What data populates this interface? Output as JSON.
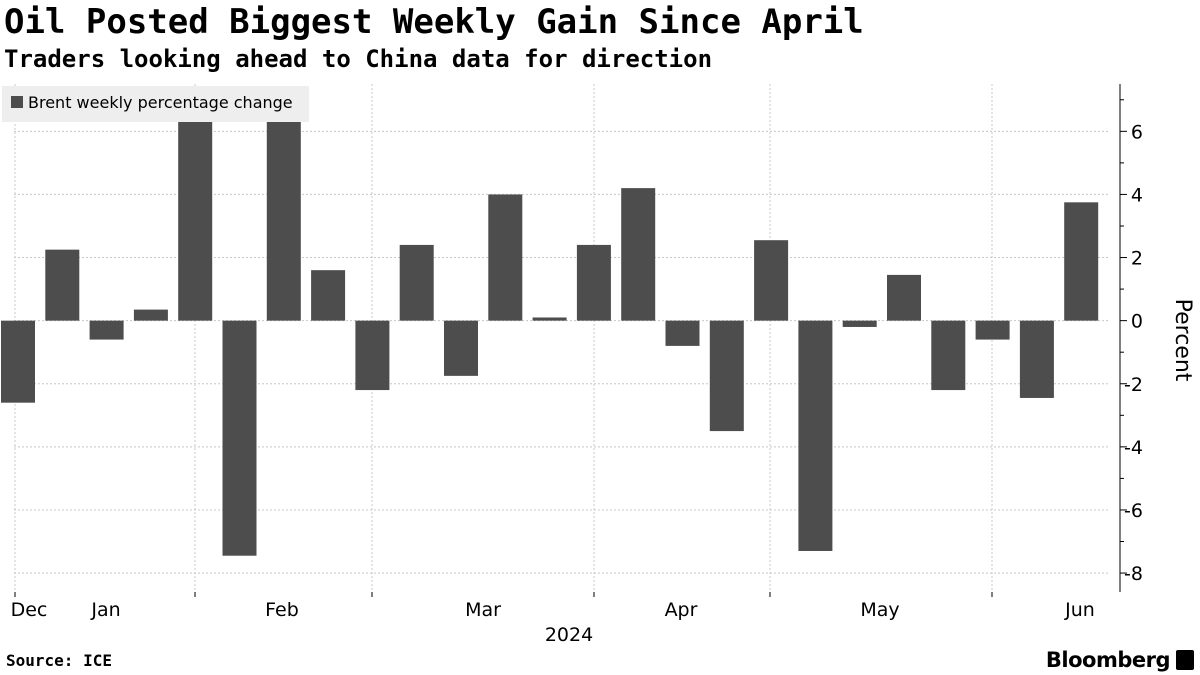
{
  "header": {
    "title": "Oil Posted Biggest Weekly Gain Since April",
    "subtitle": "Traders looking ahead to China data for direction"
  },
  "footer": {
    "source": "Source: ICE",
    "brand": "Bloomberg"
  },
  "colors": {
    "bar": "#4d4d4d",
    "grid": "#c8c8c8",
    "legend_bg": "#eeeeee"
  },
  "chart_data": {
    "type": "bar",
    "legend": [
      "Brent weekly percentage change"
    ],
    "series": [
      {
        "name": "Brent weekly percentage change",
        "values": [
          -2.6,
          2.25,
          -0.6,
          0.35,
          6.35,
          -7.45,
          6.3,
          1.6,
          -2.2,
          2.4,
          -1.75,
          4.0,
          0.1,
          2.4,
          4.2,
          -0.8,
          -3.5,
          2.55,
          -7.3,
          -0.2,
          1.45,
          -2.2,
          -0.6,
          -2.45,
          3.75
        ]
      }
    ],
    "x_tick_labels": [
      "Dec",
      "Jan",
      "Feb",
      "Mar",
      "Apr",
      "May",
      "Jun"
    ],
    "x_year_label": "2024",
    "ylabel": "Percent",
    "ylim": [
      -8.6,
      7.5
    ],
    "yticks": [
      -8,
      -6,
      -4,
      -2,
      0,
      2,
      4,
      6
    ],
    "y_axis_side": "right",
    "grid": true,
    "legend_position": "top-left"
  }
}
